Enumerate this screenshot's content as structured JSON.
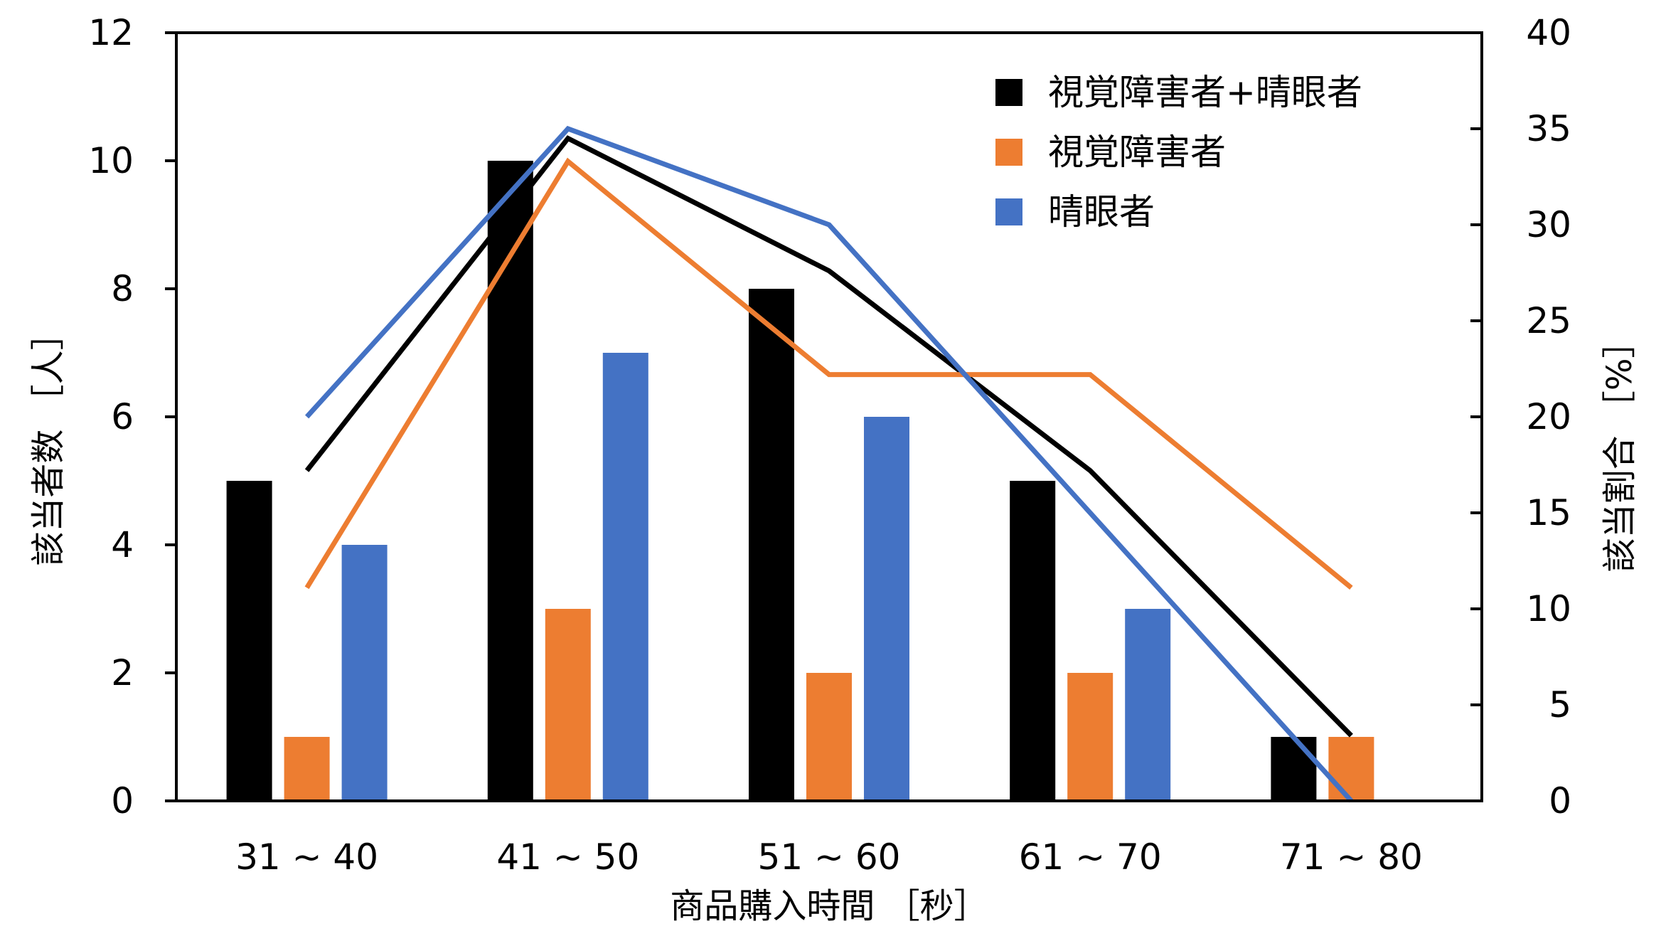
{
  "chart_data": {
    "type": "bar",
    "categories": [
      "31 ~ 40",
      "41 ~ 50",
      "51 ~ 60",
      "61 ~ 70",
      "71 ~ 80"
    ],
    "bar_series": [
      {
        "name": "視覚障害者+晴眼者",
        "color": "#000000",
        "values": [
          5,
          10,
          8,
          5,
          1
        ]
      },
      {
        "name": "視覚障害者",
        "color": "#ED7D31",
        "values": [
          1,
          3,
          2,
          2,
          1
        ]
      },
      {
        "name": "晴眼者",
        "color": "#4472C4",
        "values": [
          4,
          7,
          6,
          3,
          0
        ]
      }
    ],
    "line_series": [
      {
        "name": "視覚障害者+晴眼者",
        "color": "#000000",
        "values": [
          17.2,
          34.5,
          27.6,
          17.2,
          3.4
        ]
      },
      {
        "name": "視覚障害者",
        "color": "#ED7D31",
        "values": [
          11.1,
          33.3,
          22.2,
          22.2,
          11.1
        ]
      },
      {
        "name": "晴眼者",
        "color": "#4472C4",
        "values": [
          20.0,
          35.0,
          30.0,
          15.0,
          0.0
        ]
      }
    ],
    "xlabel": "商品購入時間 ［秒］",
    "ylabel": "該当者数 ［人］",
    "y2label": "該当割合 ［%］",
    "ylim": [
      0,
      12
    ],
    "y2lim": [
      0,
      40
    ],
    "yticks": [
      "0",
      "2",
      "4",
      "6",
      "8",
      "10",
      "12"
    ],
    "y2ticks": [
      "0",
      "5",
      "10",
      "15",
      "20",
      "25",
      "30",
      "35",
      "40"
    ],
    "legend": [
      "視覚障害者+晴眼者",
      "視覚障害者",
      "晴眼者"
    ],
    "legend_position": "top-right",
    "grid": false
  }
}
